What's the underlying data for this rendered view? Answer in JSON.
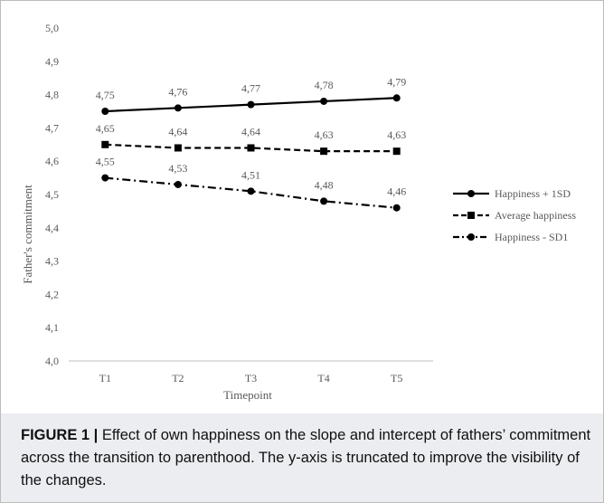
{
  "caption": {
    "label": "FIGURE 1 |",
    "text": " Effect of own happiness on the slope and intercept of fathers’ commitment across the transition to parenthood. The y-axis is truncated to improve the visibility of the changes."
  },
  "chart_data": {
    "type": "line",
    "xlabel": "Timepoint",
    "ylabel": "Father's commitment",
    "categories": [
      "T1",
      "T2",
      "T3",
      "T4",
      "T5"
    ],
    "ylim": [
      4.0,
      5.0
    ],
    "yticks": [
      "4,0",
      "4,1",
      "4,2",
      "4,3",
      "4,4",
      "4,5",
      "4,6",
      "4,7",
      "4,8",
      "4,9",
      "5,0"
    ],
    "grid": false,
    "legend_position": "right",
    "series": [
      {
        "name": "Happiness + 1SD",
        "values": [
          4.75,
          4.76,
          4.77,
          4.78,
          4.79
        ],
        "labels": [
          "4,75",
          "4,76",
          "4,77",
          "4,78",
          "4,79"
        ],
        "marker": "circle",
        "line": "solid",
        "color": "#000000"
      },
      {
        "name": "Average happiness",
        "values": [
          4.65,
          4.64,
          4.64,
          4.63,
          4.63
        ],
        "labels": [
          "4,65",
          "4,64",
          "4,64",
          "4,63",
          "4,63"
        ],
        "marker": "square",
        "line": "dashed",
        "color": "#000000"
      },
      {
        "name": "Happiness - SD1",
        "values": [
          4.55,
          4.53,
          4.51,
          4.48,
          4.46
        ],
        "labels": [
          "4,55",
          "4,53",
          "4,51",
          "4,48",
          "4,46"
        ],
        "marker": "circle",
        "line": "dashdot",
        "color": "#000000"
      }
    ]
  }
}
